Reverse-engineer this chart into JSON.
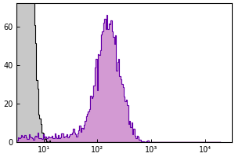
{
  "title": "",
  "xlabel": "",
  "ylabel": "",
  "xlim_log": [
    0.5,
    4.5
  ],
  "ylim": [
    0,
    72
  ],
  "yticks": [
    0,
    20,
    40,
    60
  ],
  "xtick_positions": [
    1,
    2,
    3,
    4
  ],
  "xtick_labels": [
    "10¹",
    "10²",
    "10³",
    "10⁴"
  ],
  "bg_color": "#ffffff",
  "isotype_color_fill": "#c8c8c8",
  "isotype_color_edge": "#000000",
  "sample_color_fill": "#cc88cc",
  "sample_color_edge": "#6600aa"
}
